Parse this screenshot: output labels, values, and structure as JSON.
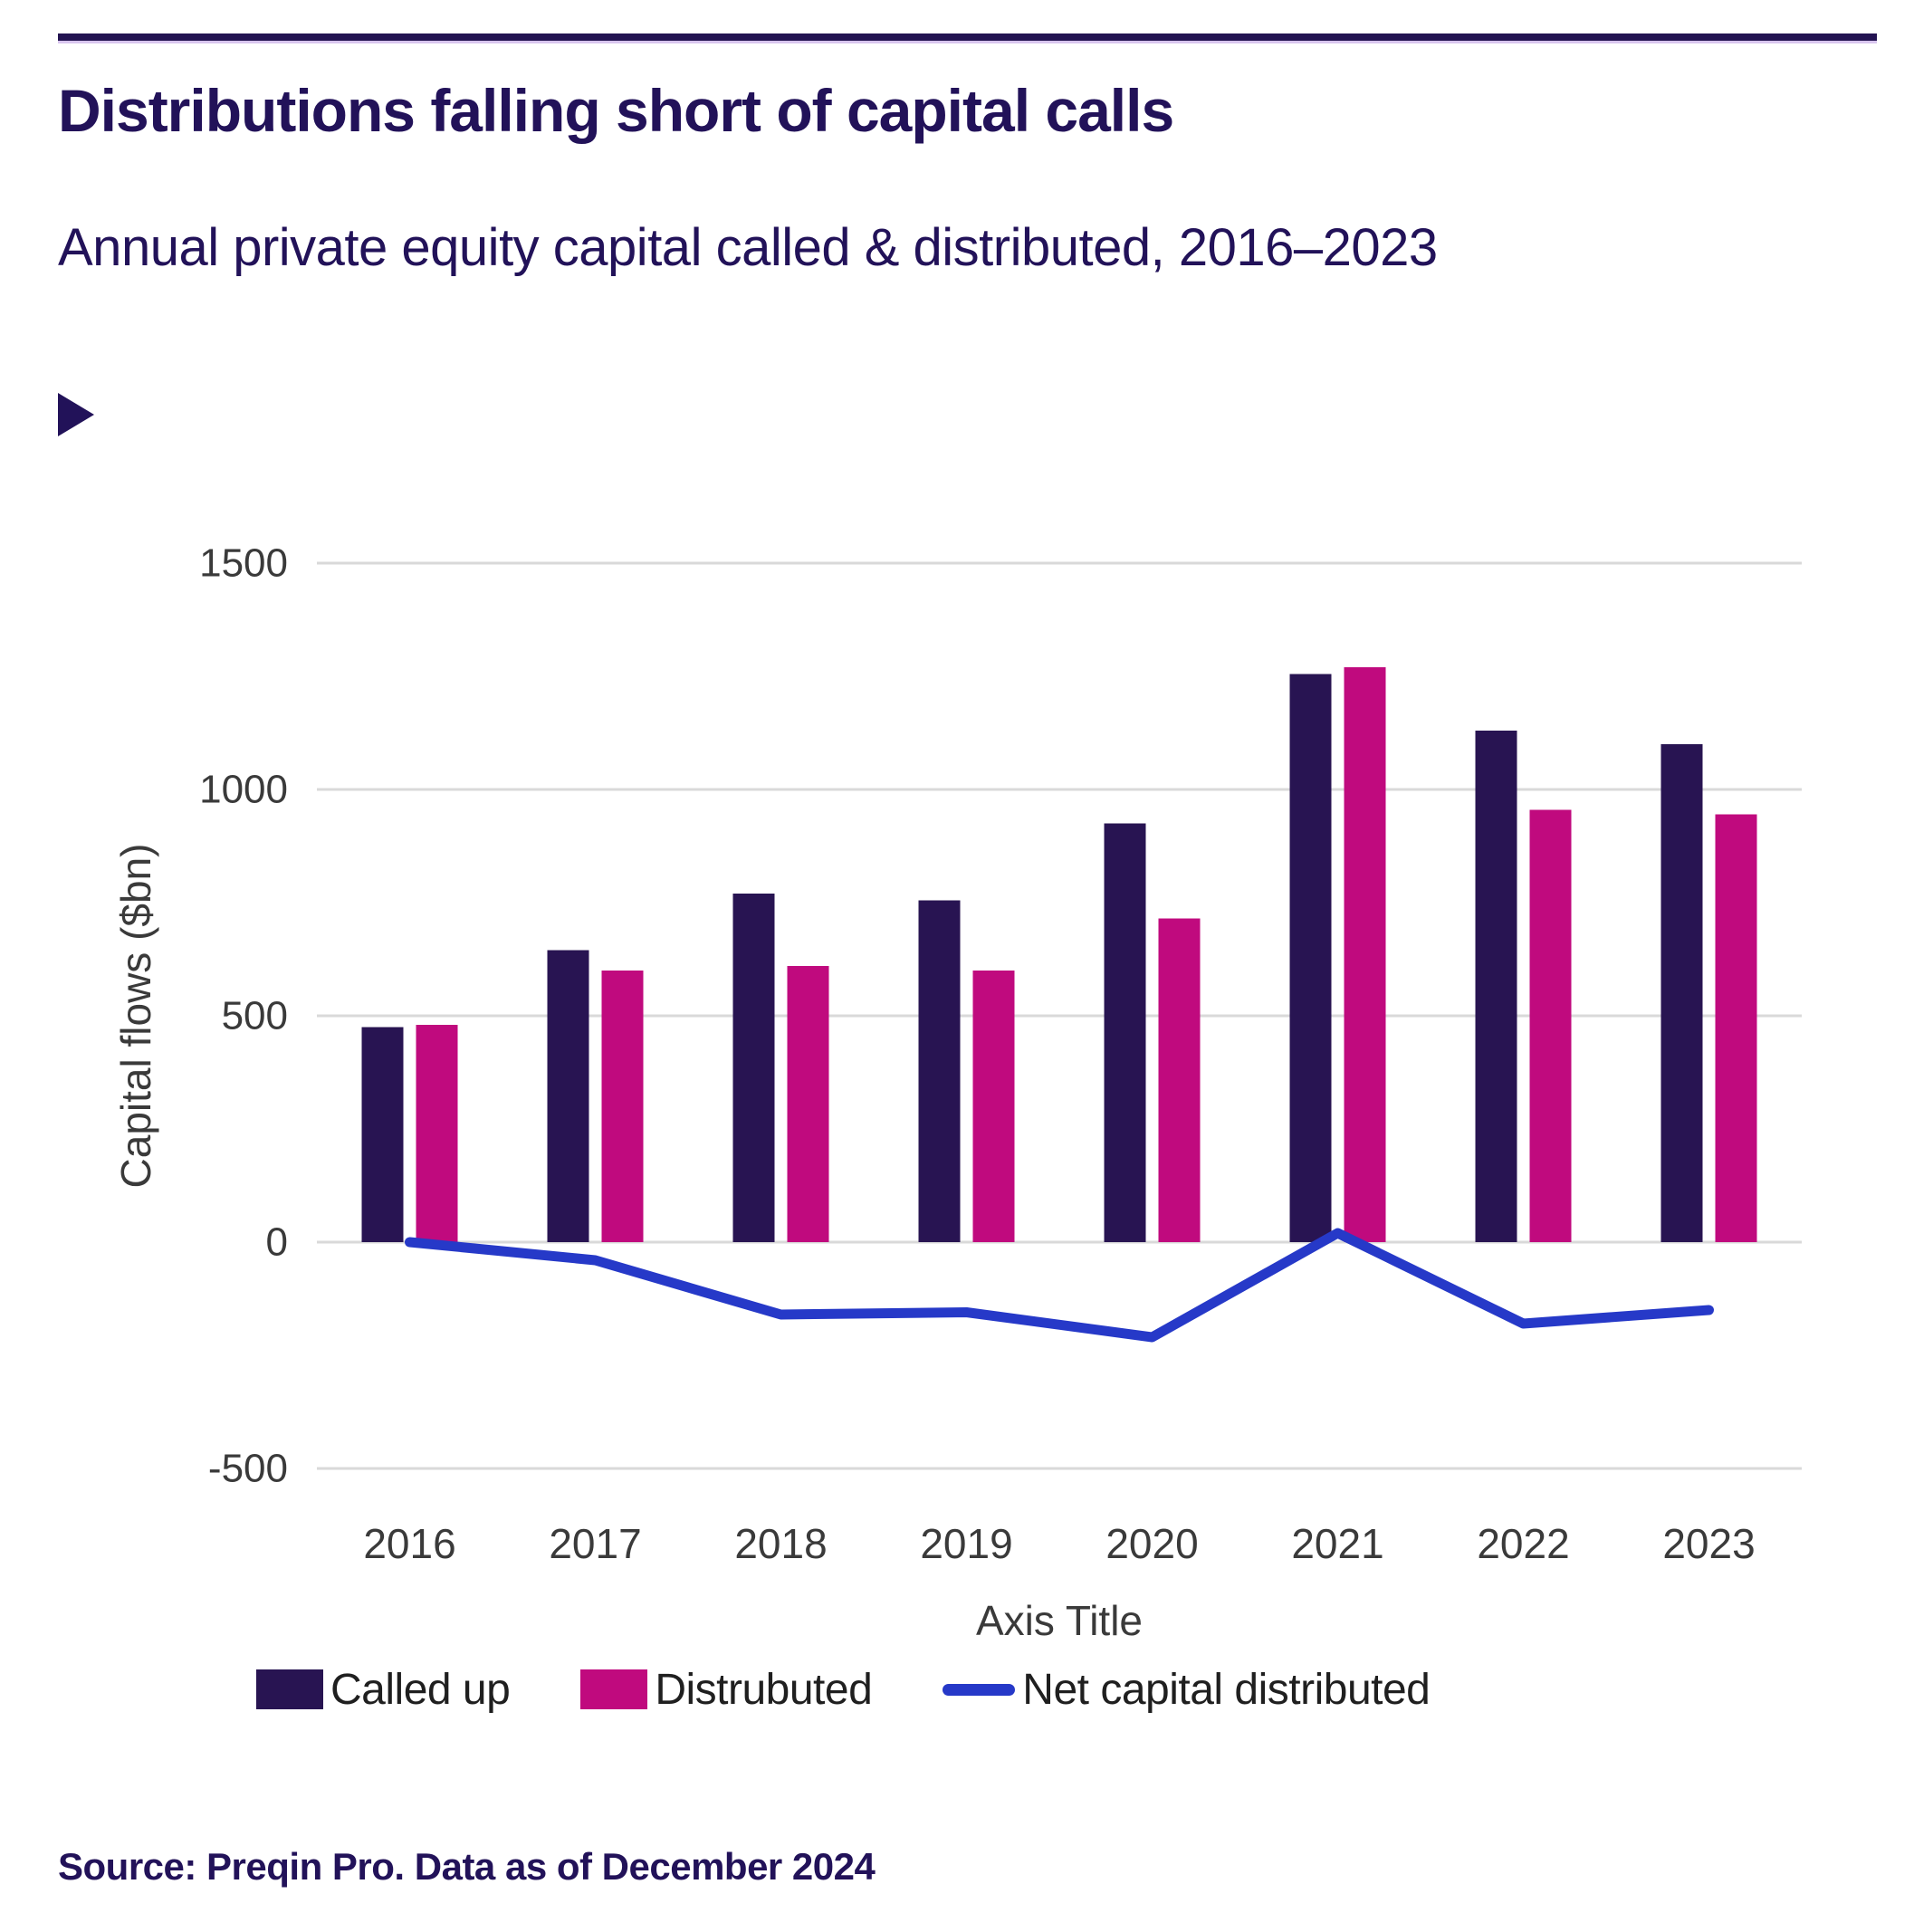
{
  "page": {
    "title": "Distributions falling short of capital calls",
    "subtitle": "Annual private equity capital called & distributed, 2016–2023",
    "source": "Source: Preqin Pro. Data as of December 2024"
  },
  "icons": {
    "play_marker": "right-pointing-triangle-bullet"
  },
  "colors": {
    "heading": "#221259",
    "rule_navy": "#231351",
    "rule_lavender": "#d8c5ee",
    "called_up": "#281452",
    "distributed": "#c00a7e",
    "net_line": "#2639c8",
    "gridline": "#d9d9d9",
    "axis_text": "#3a3a3a",
    "legend_text": "#1f1f1f"
  },
  "chart_data": {
    "type": "bar",
    "subtype": "grouped-bars-with-line-overlay",
    "categories": [
      "2016",
      "2017",
      "2018",
      "2019",
      "2020",
      "2021",
      "2022",
      "2023"
    ],
    "series": [
      {
        "name": "Called up",
        "kind": "bar",
        "color_key": "called_up",
        "values": [
          475,
          645,
          770,
          755,
          925,
          1255,
          1130,
          1100
        ]
      },
      {
        "name": "Distrubuted",
        "kind": "bar",
        "color_key": "distributed",
        "values": [
          480,
          600,
          610,
          600,
          715,
          1270,
          955,
          945
        ]
      },
      {
        "name": "Net capital distributed",
        "kind": "line",
        "color_key": "net_line",
        "values": [
          0,
          -40,
          -160,
          -155,
          -210,
          20,
          -180,
          -150
        ]
      }
    ],
    "xlabel": "Axis Title",
    "ylabel": "Capital flows ($bn)",
    "ylim": [
      -500,
      1500
    ],
    "y_ticks": [
      1500,
      1000,
      500,
      0,
      -500
    ],
    "grid": true,
    "legend_position": "bottom"
  }
}
